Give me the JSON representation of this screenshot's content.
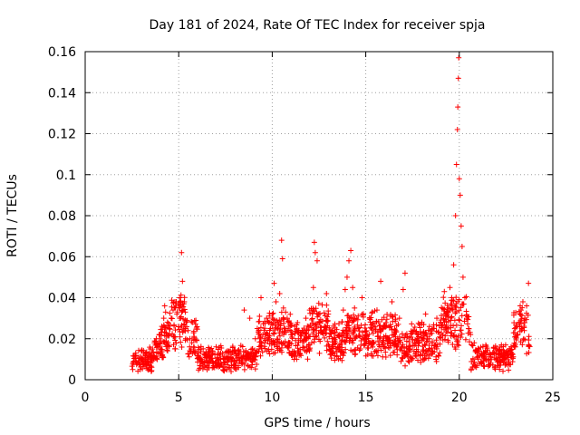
{
  "chart_data": {
    "type": "scatter",
    "title": "Day 181 of 2024, Rate Of TEC Index for receiver spja",
    "xlabel": "GPS time / hours",
    "ylabel": "ROTI / TECUs",
    "xlim": [
      0,
      25
    ],
    "ylim": [
      0,
      0.16
    ],
    "xticks": [
      "0",
      "5",
      "10",
      "15",
      "20",
      "25"
    ],
    "yticks": [
      "0",
      "0.02",
      "0.04",
      "0.06",
      "0.08",
      "0.1",
      "0.12",
      "0.14",
      "0.16"
    ],
    "grid": true,
    "marker": "+",
    "color": "#ff0000",
    "series": [
      {
        "name": "ROTI",
        "points": [
          [
            2.6,
            0.009
          ],
          [
            2.7,
            0.013
          ],
          [
            2.8,
            0.008
          ],
          [
            2.9,
            0.011
          ],
          [
            3.0,
            0.014
          ],
          [
            3.1,
            0.009
          ],
          [
            3.2,
            0.012
          ],
          [
            3.3,
            0.01
          ],
          [
            3.4,
            0.013
          ],
          [
            3.5,
            0.011
          ],
          [
            3.6,
            0.015
          ],
          [
            3.7,
            0.018
          ],
          [
            3.8,
            0.02
          ],
          [
            3.9,
            0.017
          ],
          [
            4.0,
            0.022
          ],
          [
            4.1,
            0.026
          ],
          [
            4.2,
            0.03
          ],
          [
            4.25,
            0.036
          ],
          [
            4.3,
            0.033
          ],
          [
            4.4,
            0.028
          ],
          [
            4.5,
            0.025
          ],
          [
            4.6,
            0.03
          ],
          [
            4.7,
            0.034
          ],
          [
            4.8,
            0.038
          ],
          [
            4.9,
            0.032
          ],
          [
            5.0,
            0.035
          ],
          [
            5.05,
            0.04
          ],
          [
            5.1,
            0.03
          ],
          [
            5.15,
            0.062
          ],
          [
            5.2,
            0.048
          ],
          [
            5.3,
            0.038
          ],
          [
            5.35,
            0.033
          ],
          [
            5.4,
            0.028
          ],
          [
            5.5,
            0.024
          ],
          [
            5.6,
            0.02
          ],
          [
            5.7,
            0.018
          ],
          [
            5.8,
            0.016
          ],
          [
            5.9,
            0.014
          ],
          [
            6.0,
            0.013
          ],
          [
            6.2,
            0.015
          ],
          [
            6.4,
            0.012
          ],
          [
            6.6,
            0.011
          ],
          [
            6.8,
            0.013
          ],
          [
            7.0,
            0.016
          ],
          [
            7.2,
            0.012
          ],
          [
            7.4,
            0.01
          ],
          [
            7.6,
            0.014
          ],
          [
            7.8,
            0.011
          ],
          [
            8.0,
            0.009
          ],
          [
            8.2,
            0.012
          ],
          [
            8.4,
            0.008
          ],
          [
            8.5,
            0.034
          ],
          [
            8.6,
            0.01
          ],
          [
            8.7,
            0.007
          ],
          [
            8.8,
            0.03
          ],
          [
            8.9,
            0.006
          ],
          [
            9.0,
            0.012
          ],
          [
            9.1,
            0.02
          ],
          [
            9.2,
            0.025
          ],
          [
            9.3,
            0.015
          ],
          [
            9.4,
            0.04
          ],
          [
            9.5,
            0.022
          ],
          [
            9.6,
            0.018
          ],
          [
            9.7,
            0.03
          ],
          [
            9.8,
            0.014
          ],
          [
            9.9,
            0.025
          ],
          [
            10.0,
            0.032
          ],
          [
            10.1,
            0.047
          ],
          [
            10.2,
            0.038
          ],
          [
            10.3,
            0.028
          ],
          [
            10.4,
            0.042
          ],
          [
            10.5,
            0.068
          ],
          [
            10.55,
            0.059
          ],
          [
            10.6,
            0.035
          ],
          [
            10.7,
            0.025
          ],
          [
            10.8,
            0.03
          ],
          [
            10.9,
            0.018
          ],
          [
            11.0,
            0.022
          ],
          [
            11.2,
            0.026
          ],
          [
            11.4,
            0.02
          ],
          [
            11.6,
            0.024
          ],
          [
            11.8,
            0.03
          ],
          [
            12.0,
            0.034
          ],
          [
            12.2,
            0.045
          ],
          [
            12.25,
            0.067
          ],
          [
            12.3,
            0.062
          ],
          [
            12.4,
            0.058
          ],
          [
            12.5,
            0.028
          ],
          [
            12.6,
            0.023
          ],
          [
            12.8,
            0.026
          ],
          [
            12.9,
            0.042
          ],
          [
            13.0,
            0.032
          ],
          [
            13.2,
            0.02
          ],
          [
            13.4,
            0.018
          ],
          [
            13.6,
            0.022
          ],
          [
            13.8,
            0.034
          ],
          [
            13.9,
            0.044
          ],
          [
            14.0,
            0.05
          ],
          [
            14.1,
            0.058
          ],
          [
            14.2,
            0.063
          ],
          [
            14.3,
            0.045
          ],
          [
            14.4,
            0.035
          ],
          [
            14.5,
            0.03
          ],
          [
            14.6,
            0.025
          ],
          [
            14.8,
            0.04
          ],
          [
            15.0,
            0.022
          ],
          [
            15.2,
            0.03
          ],
          [
            15.4,
            0.018
          ],
          [
            15.6,
            0.034
          ],
          [
            15.8,
            0.048
          ],
          [
            16.0,
            0.026
          ],
          [
            16.2,
            0.02
          ],
          [
            16.4,
            0.038
          ],
          [
            16.6,
            0.024
          ],
          [
            16.8,
            0.03
          ],
          [
            17.0,
            0.044
          ],
          [
            17.1,
            0.052
          ],
          [
            17.2,
            0.014
          ],
          [
            17.4,
            0.011
          ],
          [
            17.6,
            0.018
          ],
          [
            17.8,
            0.022
          ],
          [
            18.0,
            0.028
          ],
          [
            18.2,
            0.032
          ],
          [
            18.4,
            0.02
          ],
          [
            18.6,
            0.025
          ],
          [
            18.8,
            0.03
          ],
          [
            19.0,
            0.028
          ],
          [
            19.2,
            0.043
          ],
          [
            19.4,
            0.035
          ],
          [
            19.5,
            0.045
          ],
          [
            19.6,
            0.04
          ],
          [
            19.7,
            0.056
          ],
          [
            19.8,
            0.08
          ],
          [
            19.85,
            0.105
          ],
          [
            19.9,
            0.122
          ],
          [
            19.92,
            0.133
          ],
          [
            19.95,
            0.147
          ],
          [
            19.97,
            0.157
          ],
          [
            20.0,
            0.098
          ],
          [
            20.05,
            0.09
          ],
          [
            20.1,
            0.075
          ],
          [
            20.15,
            0.065
          ],
          [
            20.2,
            0.05
          ],
          [
            20.3,
            0.04
          ],
          [
            20.4,
            0.03
          ],
          [
            20.5,
            0.025
          ],
          [
            20.6,
            0.022
          ],
          [
            20.8,
            0.018
          ],
          [
            21.0,
            0.015
          ],
          [
            21.2,
            0.012
          ],
          [
            21.4,
            0.014
          ],
          [
            21.6,
            0.01
          ],
          [
            21.8,
            0.013
          ],
          [
            22.0,
            0.015
          ],
          [
            22.2,
            0.012
          ],
          [
            22.4,
            0.01
          ],
          [
            22.6,
            0.014
          ],
          [
            22.8,
            0.011
          ],
          [
            23.0,
            0.016
          ],
          [
            23.1,
            0.022
          ],
          [
            23.2,
            0.028
          ],
          [
            23.3,
            0.034
          ],
          [
            23.4,
            0.038
          ],
          [
            23.5,
            0.03
          ],
          [
            23.6,
            0.036
          ],
          [
            23.7,
            0.047
          ]
        ],
        "extra_cloud": {
          "description": "dense plus-marker band",
          "x_range": [
            2.5,
            23.8
          ],
          "min_y": 0.004
        }
      }
    ]
  }
}
